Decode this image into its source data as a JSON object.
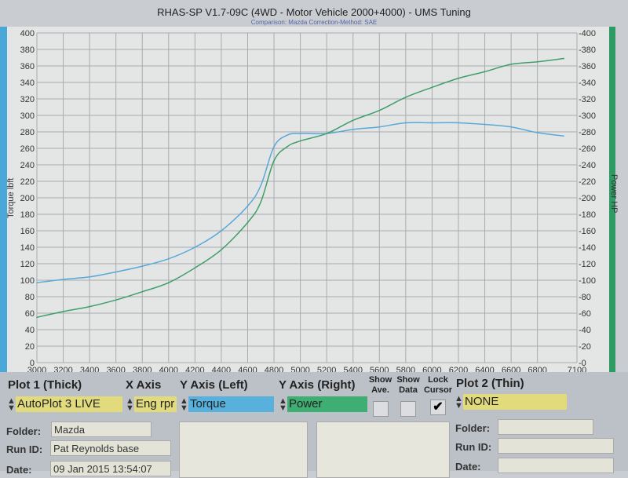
{
  "window": {
    "title": "RHAS-SP V1.7-09C  (4WD - Motor Vehicle 2000+4000) - UMS Tuning",
    "subtitle": "Comparison: Mazda    Correction-Method: SAE"
  },
  "chart_data": {
    "type": "line",
    "xlim": [
      3000,
      7100
    ],
    "xticks": [
      3000,
      3200,
      3400,
      3600,
      3800,
      4000,
      4200,
      4400,
      4600,
      4800,
      5000,
      5200,
      5400,
      5600,
      5800,
      6000,
      6200,
      6400,
      6600,
      6800,
      7100
    ],
    "ylabel_left": "Torque lbft",
    "ylabel_right": "Power HP",
    "ylim": [
      0,
      400
    ],
    "y2lim": [
      0,
      400
    ],
    "yticks": [
      0,
      20,
      40,
      60,
      80,
      100,
      120,
      140,
      160,
      180,
      200,
      220,
      240,
      260,
      280,
      300,
      320,
      340,
      360,
      380,
      400
    ],
    "grid": true,
    "x": [
      3000,
      3200,
      3400,
      3600,
      3800,
      4000,
      4200,
      4400,
      4600,
      4700,
      4800,
      4900,
      5000,
      5200,
      5400,
      5600,
      5800,
      6000,
      6200,
      6400,
      6600,
      6800,
      7000
    ],
    "series": [
      {
        "name": "Torque",
        "axis": "left",
        "color": "#5aa8d8",
        "values": [
          97,
          101,
          104,
          110,
          117,
          126,
          140,
          160,
          190,
          215,
          262,
          276,
          278,
          278,
          283,
          286,
          291,
          291,
          291,
          289,
          286,
          279,
          275
        ]
      },
      {
        "name": "Power",
        "axis": "right",
        "color": "#3f9e6a",
        "values": [
          55,
          62,
          68,
          76,
          86,
          97,
          115,
          137,
          170,
          195,
          245,
          262,
          269,
          278,
          294,
          306,
          322,
          334,
          345,
          353,
          362,
          365,
          369
        ]
      }
    ]
  },
  "panel": {
    "plot1_header": "Plot 1 (Thick)",
    "xaxis_header": "X Axis",
    "yleft_header": "Y Axis (Left)",
    "yright_header": "Y Axis (Right)",
    "show_ave": "Show Ave.",
    "show_data": "Show Data",
    "lock_cursor": "Lock Cursor",
    "plot2_header": "Plot 2 (Thin)",
    "plot1_value": "AutoPlot 3 LIVE",
    "xaxis_value": "Eng rpr",
    "yleft_value": "Torque",
    "yright_value": "Power",
    "plot2_value": "NONE",
    "show_ave_checked": false,
    "show_data_checked": false,
    "lock_cursor_checked": true,
    "check_glyph": "✔",
    "folder_label": "Folder:",
    "runid_label": "Run ID:",
    "date_label": "Date:",
    "folder1": "Mazda",
    "runid1": "Pat Reynolds base",
    "date1": "09  Jan 2015   13:54:07",
    "folder2": "",
    "runid2": "",
    "date2": "",
    "colors": {
      "yellow": "#e2db7e",
      "blue": "#58b0dc",
      "green": "#3fae72"
    }
  }
}
